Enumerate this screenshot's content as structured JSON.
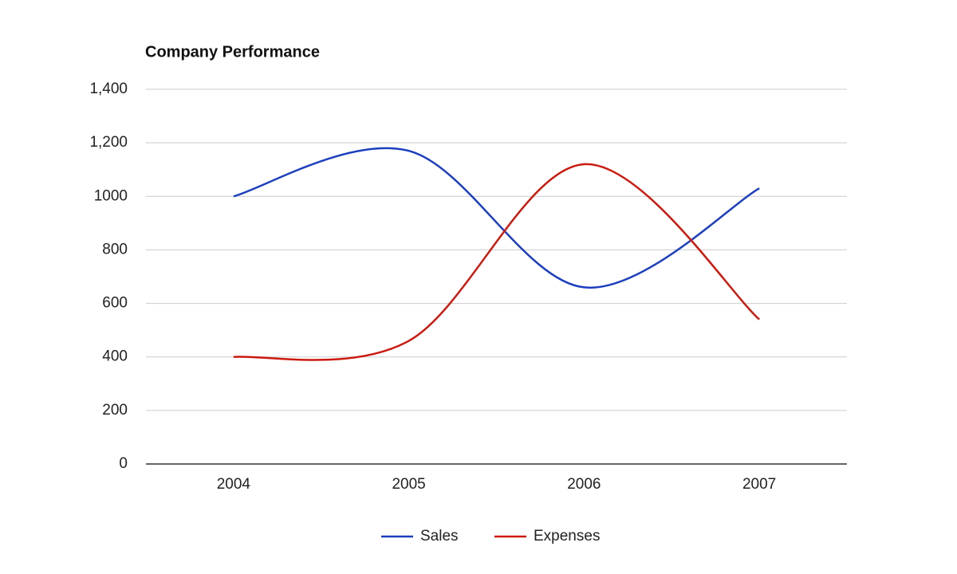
{
  "chart_data": {
    "type": "line",
    "title": "Company Performance",
    "categories": [
      "2004",
      "2005",
      "2006",
      "2007"
    ],
    "series": [
      {
        "name": "Sales",
        "color": "#1c3fbf",
        "values": [
          1000,
          1170,
          660,
          1030
        ]
      },
      {
        "name": "Expenses",
        "color": "#cc1a0f",
        "values": [
          400,
          460,
          1120,
          540
        ]
      }
    ],
    "ylim": [
      0,
      1400
    ],
    "yticks": [
      0,
      200,
      400,
      600,
      800,
      1000,
      {
        "value": 1200,
        "label": "1,200"
      },
      {
        "value": 1400,
        "label": "1,400"
      }
    ],
    "grid": true,
    "smooth": true,
    "legend": "bottom"
  }
}
